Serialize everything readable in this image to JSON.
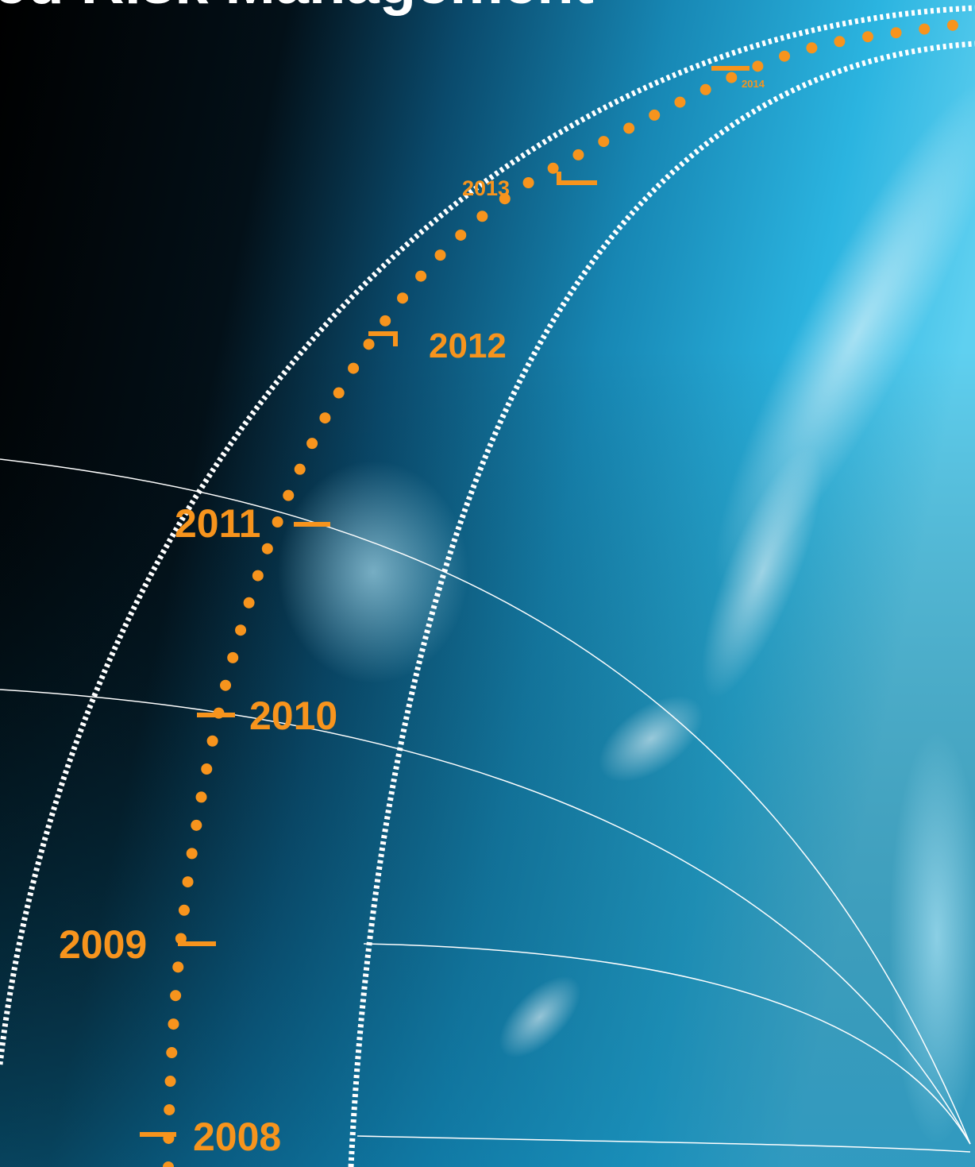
{
  "header": {
    "title": "ed Risk Management"
  },
  "timeline": {
    "years": [
      "2008",
      "2009",
      "2010",
      "2011",
      "2012",
      "2013",
      "2014"
    ]
  },
  "colors": {
    "accent": "#f7941d",
    "background_dark": "#000000",
    "background_light": "#1aa7d6",
    "lines": "#ffffff"
  }
}
